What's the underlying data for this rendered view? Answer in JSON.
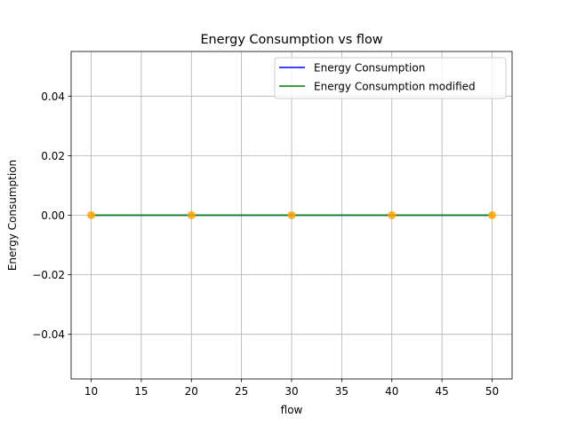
{
  "chart_data": {
    "type": "line",
    "title": "Energy Consumption vs flow",
    "xlabel": "flow",
    "ylabel": "Energy Consumption",
    "x": [
      10,
      20,
      30,
      40,
      50
    ],
    "series": [
      {
        "name": "Energy Consumption",
        "values": [
          0,
          0,
          0,
          0,
          0
        ],
        "color": "#0000ff"
      },
      {
        "name": "Energy Consumption modified",
        "values": [
          0,
          0,
          0,
          0,
          0
        ],
        "color": "#008000"
      }
    ],
    "markers": {
      "values": [
        0,
        0,
        0,
        0,
        0
      ],
      "color": "#ffa500"
    },
    "xlim": [
      8,
      52
    ],
    "ylim": [
      -0.055,
      0.055
    ],
    "xticks": [
      10,
      15,
      20,
      25,
      30,
      35,
      40,
      45,
      50
    ],
    "yticks": [
      -0.04,
      -0.02,
      0.0,
      0.02,
      0.04
    ],
    "ytick_labels": [
      "−0.04",
      "−0.02",
      "0.00",
      "0.02",
      "0.04"
    ],
    "grid": true,
    "legend_position": "top-right",
    "colors": {
      "grid": "#b0b0b0",
      "axes": "#000000",
      "background": "#ffffff"
    }
  }
}
